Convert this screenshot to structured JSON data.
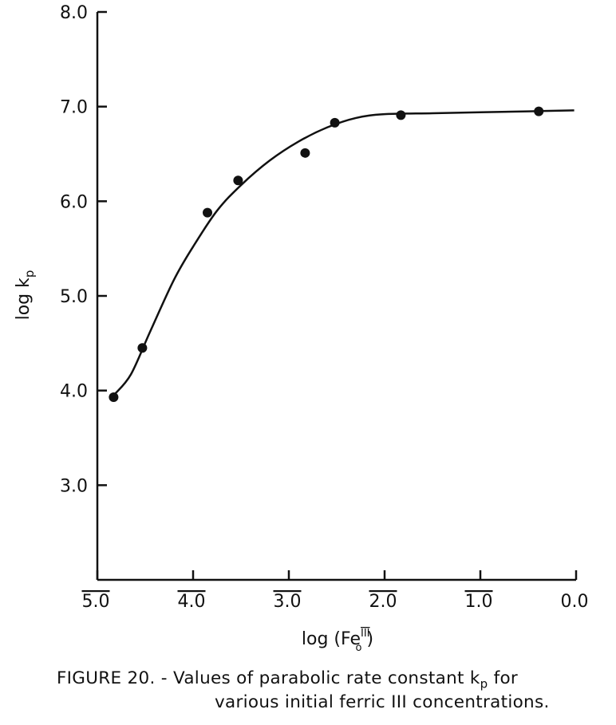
{
  "chart_data": {
    "type": "scatter",
    "title": "",
    "xlabel": "log (Fe",
    "xlabel_super": "III",
    "xlabel_sub": "o",
    "xlabel_close": ")",
    "ylabel": "log k",
    "ylabel_sub": "p",
    "xlim": [
      -5.0,
      0.0
    ],
    "ylim": [
      2.0,
      8.0
    ],
    "x_ticks": [
      {
        "value": -5.0,
        "label": "5.0",
        "bar": true
      },
      {
        "value": -4.0,
        "label": "4.0",
        "bar": true
      },
      {
        "value": -3.0,
        "label": "3.0",
        "bar": true
      },
      {
        "value": -2.0,
        "label": "2.0",
        "bar": true
      },
      {
        "value": -1.0,
        "label": "1.0",
        "bar": true
      },
      {
        "value": 0.0,
        "label": "0.0",
        "bar": false
      }
    ],
    "y_ticks": [
      {
        "value": 3.0,
        "label": "3.0"
      },
      {
        "value": 4.0,
        "label": "4.0"
      },
      {
        "value": 5.0,
        "label": "5.0"
      },
      {
        "value": 6.0,
        "label": "6.0"
      },
      {
        "value": 7.0,
        "label": "7.0"
      },
      {
        "value": 8.0,
        "label": "8.0"
      }
    ],
    "grid": false,
    "series": [
      {
        "points": [
          {
            "x": -4.83,
            "y": 3.93
          },
          {
            "x": -4.53,
            "y": 4.45
          },
          {
            "x": -3.85,
            "y": 5.88
          },
          {
            "x": -3.53,
            "y": 6.22
          },
          {
            "x": -2.83,
            "y": 6.51
          },
          {
            "x": -2.52,
            "y": 6.83
          },
          {
            "x": -1.83,
            "y": 6.91
          },
          {
            "x": -0.39,
            "y": 6.95
          }
        ],
        "curve": [
          {
            "x": -4.82,
            "y": 3.96
          },
          {
            "x": -4.65,
            "y": 4.17
          },
          {
            "x": -4.45,
            "y": 4.62
          },
          {
            "x": -4.2,
            "y": 5.17
          },
          {
            "x": -4.0,
            "y": 5.52
          },
          {
            "x": -3.75,
            "y": 5.9
          },
          {
            "x": -3.5,
            "y": 6.17
          },
          {
            "x": -3.2,
            "y": 6.43
          },
          {
            "x": -2.9,
            "y": 6.63
          },
          {
            "x": -2.6,
            "y": 6.78
          },
          {
            "x": -2.3,
            "y": 6.88
          },
          {
            "x": -2.0,
            "y": 6.92
          },
          {
            "x": -1.5,
            "y": 6.93
          },
          {
            "x": -1.0,
            "y": 6.94
          },
          {
            "x": -0.5,
            "y": 6.95
          },
          {
            "x": -0.02,
            "y": 6.96
          }
        ],
        "color": "#111111"
      }
    ]
  },
  "caption": {
    "line1_a": "FIGURE 20. - Values of parabolic rate constant k",
    "line1_sub": "p",
    "line1_b": " for",
    "line2": "various initial ferric III concentrations."
  }
}
